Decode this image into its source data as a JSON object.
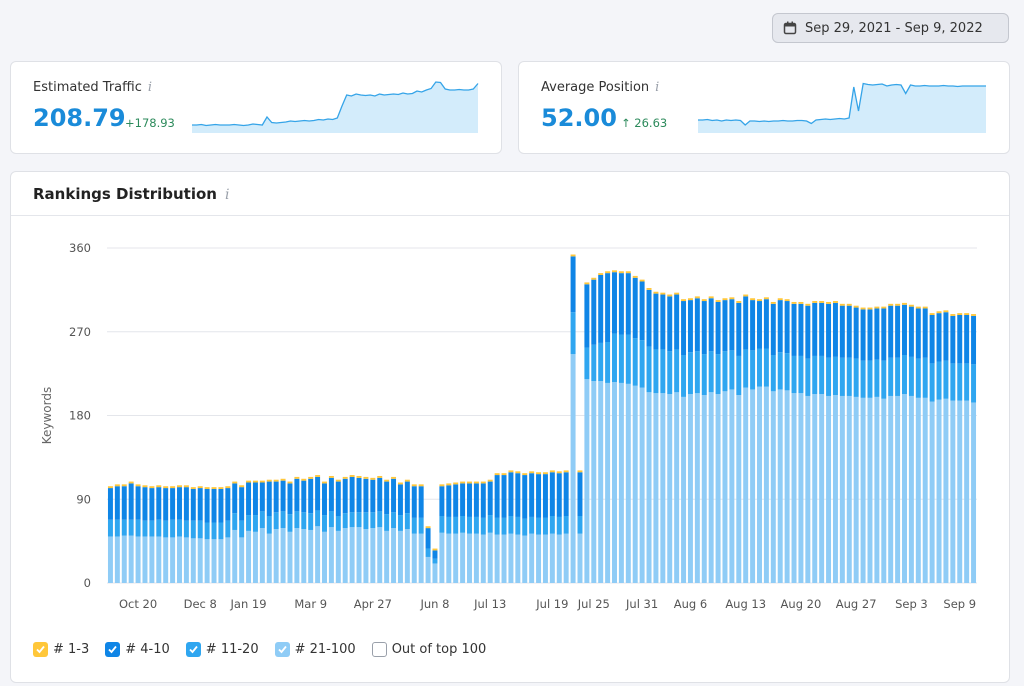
{
  "date_range": "Sep 29, 2021 - Sep 9, 2022",
  "kpis": {
    "traffic": {
      "title": "Estimated Traffic",
      "value": "208.79",
      "delta": "+178.93"
    },
    "position": {
      "title": "Average Position",
      "value": "52.00",
      "delta": "↑ 26.63"
    }
  },
  "info_glyph": "i",
  "colors": {
    "accent": "#1a8bd9",
    "positive": "#2c8a5b",
    "top3": "#ffc73a",
    "top4_10": "#0f85e6",
    "top11_20": "#2fa6f0",
    "top21_100": "#8fccf6",
    "spark_line": "#35a4e8",
    "spark_fill": "#d3ecfb"
  },
  "sparklines": {
    "traffic": [
      0.12,
      0.12,
      0.13,
      0.11,
      0.12,
      0.13,
      0.12,
      0.12,
      0.12,
      0.13,
      0.12,
      0.11,
      0.12,
      0.14,
      0.13,
      0.12,
      0.28,
      0.17,
      0.16,
      0.17,
      0.18,
      0.2,
      0.19,
      0.2,
      0.21,
      0.2,
      0.21,
      0.23,
      0.22,
      0.24,
      0.23,
      0.26,
      0.5,
      0.72,
      0.7,
      0.74,
      0.72,
      0.71,
      0.72,
      0.7,
      0.74,
      0.72,
      0.73,
      0.74,
      0.73,
      0.76,
      0.74,
      0.75,
      0.8,
      0.78,
      0.82,
      0.85,
      0.98,
      0.97,
      0.84,
      0.82,
      0.82,
      0.83,
      0.82,
      0.82,
      0.84,
      0.95
    ],
    "position": [
      0.22,
      0.22,
      0.23,
      0.21,
      0.22,
      0.2,
      0.22,
      0.21,
      0.22,
      0.21,
      0.12,
      0.2,
      0.2,
      0.19,
      0.2,
      0.19,
      0.2,
      0.2,
      0.21,
      0.2,
      0.2,
      0.21,
      0.21,
      0.2,
      0.15,
      0.22,
      0.23,
      0.24,
      0.23,
      0.24,
      0.25,
      0.24,
      0.26,
      0.88,
      0.4,
      0.95,
      0.93,
      0.92,
      0.93,
      0.94,
      0.9,
      0.92,
      0.93,
      0.92,
      0.75,
      0.92,
      0.9,
      0.9,
      0.91,
      0.9,
      0.9,
      0.9,
      0.91,
      0.9,
      0.9,
      0.89,
      0.9,
      0.9,
      0.9,
      0.9,
      0.9,
      0.9
    ]
  },
  "rankings": {
    "title": "Rankings Distribution",
    "legend": [
      {
        "key": "top3",
        "label": "# 1-3",
        "checked": true
      },
      {
        "key": "top4_10",
        "label": "# 4-10",
        "checked": true
      },
      {
        "key": "top11_20",
        "label": "# 11-20",
        "checked": true
      },
      {
        "key": "top21_100",
        "label": "# 21-100",
        "checked": true
      },
      {
        "key": "out",
        "label": "Out of top 100",
        "checked": false
      }
    ]
  },
  "chart_data": {
    "type": "bar",
    "stacked": true,
    "ylabel": "Keywords",
    "ylim": [
      0,
      360
    ],
    "yticks": [
      0,
      90,
      180,
      270,
      360
    ],
    "grid": true,
    "x_tick_labels": [
      "Oct 20",
      "Dec 8",
      "Jan 19",
      "Mar 9",
      "Apr 27",
      "Jun 8",
      "Jul 13",
      "Jul 19",
      "Jul 25",
      "Jul 31",
      "Aug 6",
      "Aug 13",
      "Aug 20",
      "Aug 27",
      "Sep 3",
      "Sep 9"
    ],
    "x_tick_indices": [
      4,
      13,
      20,
      29,
      38,
      47,
      55,
      64,
      70,
      77,
      84,
      92,
      100,
      108,
      116,
      123
    ],
    "series": [
      {
        "key": "top21_100",
        "values": [
          50,
          50,
          51,
          51,
          50,
          50,
          50,
          50,
          49,
          49,
          50,
          49,
          48,
          48,
          47,
          47,
          47,
          49,
          57,
          49,
          56,
          55,
          59,
          53,
          58,
          59,
          55,
          59,
          58,
          57,
          61,
          55,
          60,
          56,
          59,
          60,
          60,
          58,
          59,
          60,
          56,
          59,
          56,
          58,
          53,
          53,
          28,
          21,
          54,
          53,
          53,
          54,
          53,
          53,
          52,
          54,
          52,
          52,
          53,
          52,
          51,
          53,
          52,
          52,
          53,
          52,
          53,
          246,
          53,
          219,
          217,
          217,
          215,
          216,
          215,
          214,
          212,
          210,
          205,
          204,
          204,
          203,
          205,
          200,
          203,
          204,
          202,
          205,
          203,
          206,
          208,
          202,
          210,
          208,
          211,
          211,
          206,
          208,
          207,
          204,
          204,
          201,
          203,
          203,
          201,
          202,
          201,
          201,
          200,
          199,
          199,
          200,
          198,
          201,
          201,
          203,
          201,
          199,
          199,
          195,
          197,
          198,
          196,
          196,
          196,
          194
        ]
      },
      {
        "key": "top11_20",
        "values": [
          18,
          18,
          17,
          17,
          18,
          17,
          17,
          18,
          18,
          19,
          18,
          18,
          19,
          19,
          18,
          18,
          18,
          18,
          18,
          18,
          17,
          18,
          18,
          19,
          18,
          18,
          19,
          18,
          18,
          18,
          17,
          18,
          17,
          16,
          16,
          16,
          16,
          18,
          17,
          17,
          18,
          17,
          17,
          17,
          17,
          17,
          9,
          5,
          18,
          18,
          18,
          18,
          18,
          18,
          18,
          19,
          18,
          18,
          19,
          19,
          18,
          18,
          18,
          18,
          19,
          19,
          19,
          45,
          19,
          34,
          39,
          41,
          44,
          52,
          52,
          53,
          51,
          51,
          49,
          47,
          47,
          46,
          46,
          45,
          45,
          45,
          44,
          44,
          43,
          43,
          42,
          42,
          41,
          42,
          41,
          41,
          39,
          40,
          40,
          40,
          40,
          40,
          41,
          41,
          41,
          41,
          41,
          41,
          41,
          40,
          40,
          40,
          41,
          41,
          41,
          42,
          42,
          42,
          43,
          41,
          41,
          41,
          40,
          40,
          40,
          41
        ]
      },
      {
        "key": "top4_10",
        "values": [
          34,
          36,
          36,
          39,
          36,
          36,
          35,
          35,
          35,
          34,
          35,
          36,
          34,
          35,
          36,
          36,
          36,
          35,
          32,
          36,
          35,
          35,
          31,
          37,
          33,
          33,
          33,
          35,
          34,
          37,
          36,
          34,
          36,
          37,
          37,
          38,
          37,
          36,
          35,
          36,
          35,
          36,
          33,
          34,
          34,
          34,
          22,
          9,
          32,
          34,
          35,
          35,
          36,
          36,
          37,
          36,
          46,
          46,
          47,
          47,
          47,
          47,
          47,
          47,
          47,
          47,
          47,
          60,
          47,
          68,
          70,
          73,
          74,
          66,
          66,
          66,
          65,
          63,
          61,
          60,
          59,
          59,
          59,
          58,
          56,
          57,
          57,
          57,
          56,
          55,
          55,
          57,
          57,
          54,
          51,
          53,
          55,
          56,
          56,
          56,
          56,
          57,
          57,
          57,
          58,
          58,
          56,
          56,
          55,
          55,
          55,
          55,
          56,
          56,
          56,
          54,
          54,
          54,
          53,
          52,
          52,
          52,
          51,
          52,
          52,
          52
        ]
      },
      {
        "key": "top3",
        "values": [
          2,
          2,
          2,
          2,
          2,
          2,
          2,
          2,
          2,
          2,
          2,
          2,
          2,
          2,
          2,
          2,
          2,
          2,
          2,
          2,
          2,
          2,
          2,
          2,
          2,
          2,
          2,
          2,
          2,
          2,
          2,
          2,
          2,
          2,
          2,
          2,
          2,
          2,
          2,
          2,
          2,
          2,
          2,
          2,
          2,
          2,
          2,
          2,
          2,
          2,
          2,
          2,
          2,
          2,
          2,
          2,
          2,
          2,
          2,
          2,
          2,
          2,
          2,
          2,
          2,
          2,
          2,
          2,
          2,
          2,
          2,
          2,
          2,
          2,
          2,
          2,
          2,
          2,
          2,
          2,
          2,
          2,
          2,
          2,
          2,
          2,
          2,
          2,
          2,
          2,
          2,
          2,
          2,
          2,
          2,
          2,
          2,
          2,
          2,
          2,
          2,
          2,
          2,
          2,
          2,
          2,
          2,
          2,
          2,
          2,
          2,
          2,
          2,
          2,
          2,
          2,
          2,
          2,
          2,
          2,
          2,
          2,
          2,
          2,
          2,
          2
        ]
      }
    ]
  }
}
